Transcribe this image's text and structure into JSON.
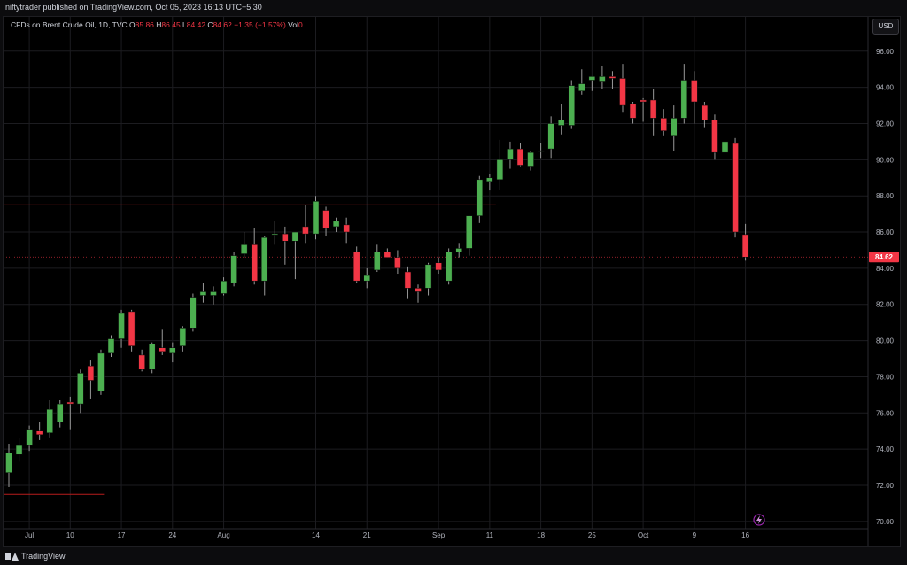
{
  "header": {
    "published": "niftytrader published on TradingView.com, Oct 05, 2023 16:13 UTC+5:30"
  },
  "footer": {
    "brand": "TradingView"
  },
  "currency_button": "USD",
  "colors": {
    "up": "#26a69a",
    "up_fill": "#4caf50",
    "down": "#f23645",
    "grid": "#1c1c20",
    "level": "#b71c1c"
  },
  "chart_data": {
    "type": "candlestick",
    "legend": {
      "symbol": "CFDs on Brent Crude Oil, 1D, TVC",
      "open_label": "O",
      "open": "85.86",
      "high_label": "H",
      "high": "86.45",
      "low_label": "L",
      "low": "84.42",
      "close_label": "C",
      "close": "84.62",
      "change": "−1.35 (−1.57%)",
      "volume_label": "Vol",
      "volume": "0"
    },
    "ylim": [
      69.6,
      97.9
    ],
    "yticks": [
      "70.00",
      "72.00",
      "74.00",
      "76.00",
      "78.00",
      "80.00",
      "82.00",
      "84.00",
      "86.00",
      "88.00",
      "90.00",
      "92.00",
      "94.00",
      "96.00"
    ],
    "last_price": "84.62",
    "xticks": [
      {
        "i": 2,
        "label": "Jul"
      },
      {
        "i": 6,
        "label": "10"
      },
      {
        "i": 11,
        "label": "17"
      },
      {
        "i": 16,
        "label": "24"
      },
      {
        "i": 21,
        "label": "Aug"
      },
      {
        "i": 30,
        "label": "14"
      },
      {
        "i": 35,
        "label": "21"
      },
      {
        "i": 42,
        "label": "Sep"
      },
      {
        "i": 47,
        "label": "11"
      },
      {
        "i": 52,
        "label": "18"
      },
      {
        "i": 57,
        "label": "25"
      },
      {
        "i": 62,
        "label": "Oct"
      },
      {
        "i": 67,
        "label": "9"
      },
      {
        "i": 72,
        "label": "16"
      }
    ],
    "levels": [
      {
        "value": 87.5,
        "from": -0.5,
        "to": 47.6
      },
      {
        "value": 71.5,
        "from": -0.5,
        "to": 9.3
      }
    ],
    "candles": [
      [
        72.7,
        74.3,
        71.9,
        73.8
      ],
      [
        73.7,
        74.6,
        73.3,
        74.2
      ],
      [
        74.2,
        75.3,
        73.9,
        75.1
      ],
      [
        75.0,
        75.5,
        74.5,
        74.8
      ],
      [
        74.9,
        76.7,
        74.6,
        76.2
      ],
      [
        75.5,
        76.7,
        75.2,
        76.5
      ],
      [
        76.6,
        76.9,
        75.1,
        76.5
      ],
      [
        76.5,
        78.4,
        76.0,
        78.2
      ],
      [
        78.6,
        78.9,
        76.8,
        77.8
      ],
      [
        77.2,
        79.5,
        77.0,
        79.3
      ],
      [
        79.3,
        80.3,
        79.1,
        80.1
      ],
      [
        80.1,
        81.7,
        79.6,
        81.5
      ],
      [
        81.6,
        81.7,
        79.4,
        79.7
      ],
      [
        79.2,
        79.5,
        78.3,
        78.4
      ],
      [
        78.4,
        79.9,
        78.2,
        79.8
      ],
      [
        79.6,
        80.6,
        79.2,
        79.4
      ],
      [
        79.3,
        79.9,
        78.8,
        79.6
      ],
      [
        79.7,
        80.8,
        79.4,
        80.7
      ],
      [
        80.7,
        82.6,
        80.5,
        82.4
      ],
      [
        82.5,
        83.2,
        82.1,
        82.7
      ],
      [
        82.5,
        83.0,
        82.0,
        82.7
      ],
      [
        82.6,
        83.5,
        82.5,
        83.3
      ],
      [
        83.2,
        84.9,
        83.0,
        84.7
      ],
      [
        84.8,
        86.0,
        84.6,
        85.3
      ],
      [
        85.3,
        86.2,
        83.1,
        83.3
      ],
      [
        83.3,
        85.8,
        82.5,
        85.7
      ],
      [
        85.9,
        86.6,
        85.3,
        85.9
      ],
      [
        85.9,
        86.3,
        84.2,
        85.5
      ],
      [
        85.5,
        86.0,
        83.4,
        86.0
      ],
      [
        86.3,
        87.5,
        85.4,
        85.9
      ],
      [
        85.9,
        88.0,
        85.6,
        87.7
      ],
      [
        87.2,
        87.4,
        85.8,
        86.2
      ],
      [
        86.3,
        86.8,
        86.0,
        86.6
      ],
      [
        86.4,
        86.8,
        85.4,
        86.0
      ],
      [
        84.9,
        85.2,
        83.2,
        83.3
      ],
      [
        83.3,
        84.0,
        82.9,
        83.6
      ],
      [
        83.9,
        85.3,
        83.8,
        84.9
      ],
      [
        84.9,
        85.1,
        84.6,
        84.6
      ],
      [
        84.6,
        85.0,
        83.7,
        84.0
      ],
      [
        83.8,
        84.1,
        82.3,
        82.9
      ],
      [
        82.9,
        83.1,
        82.1,
        82.7
      ],
      [
        82.9,
        84.3,
        82.5,
        84.2
      ],
      [
        84.3,
        84.6,
        83.7,
        83.9
      ],
      [
        83.3,
        85.1,
        83.1,
        84.9
      ],
      [
        84.9,
        85.4,
        84.6,
        85.1
      ],
      [
        85.1,
        86.9,
        84.7,
        86.9
      ],
      [
        86.9,
        89.1,
        86.5,
        88.9
      ],
      [
        88.8,
        89.2,
        88.3,
        89.0
      ],
      [
        88.9,
        91.1,
        88.3,
        90.0
      ],
      [
        90.0,
        91.0,
        89.5,
        90.6
      ],
      [
        90.6,
        90.9,
        89.6,
        89.7
      ],
      [
        89.6,
        90.5,
        89.4,
        90.4
      ],
      [
        90.5,
        90.9,
        90.1,
        90.5
      ],
      [
        90.6,
        92.4,
        90.1,
        92.0
      ],
      [
        91.9,
        93.1,
        91.4,
        92.2
      ],
      [
        91.9,
        94.4,
        91.7,
        94.1
      ],
      [
        93.8,
        95.0,
        93.6,
        94.2
      ],
      [
        94.4,
        94.6,
        93.8,
        94.6
      ],
      [
        94.3,
        95.2,
        93.9,
        94.6
      ],
      [
        94.6,
        94.9,
        93.9,
        94.5
      ],
      [
        94.5,
        95.3,
        92.6,
        93.0
      ],
      [
        93.1,
        93.2,
        92.0,
        92.3
      ],
      [
        93.3,
        93.4,
        92.1,
        93.2
      ],
      [
        93.3,
        93.9,
        91.3,
        92.3
      ],
      [
        92.3,
        92.8,
        91.3,
        91.6
      ],
      [
        91.3,
        93.0,
        90.5,
        92.3
      ],
      [
        92.3,
        95.3,
        92.0,
        94.4
      ],
      [
        94.4,
        94.9,
        92.0,
        93.2
      ],
      [
        93.0,
        93.2,
        91.8,
        92.2
      ],
      [
        92.2,
        92.5,
        90.0,
        90.4
      ],
      [
        90.4,
        91.5,
        89.6,
        91.0
      ],
      [
        90.9,
        91.2,
        85.7,
        86.0
      ],
      [
        85.86,
        86.45,
        84.42,
        84.62
      ]
    ]
  }
}
